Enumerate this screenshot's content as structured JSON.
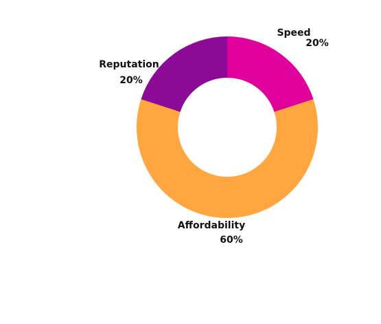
{
  "chart_data": {
    "type": "donut",
    "categories": [
      "Speed",
      "Affordability",
      "Reputation"
    ],
    "values": [
      20,
      60,
      20
    ],
    "value_labels": [
      "20%",
      "60%",
      "20%"
    ],
    "colors": [
      "#e0009c",
      "#ffa640",
      "#8b0a96"
    ]
  }
}
